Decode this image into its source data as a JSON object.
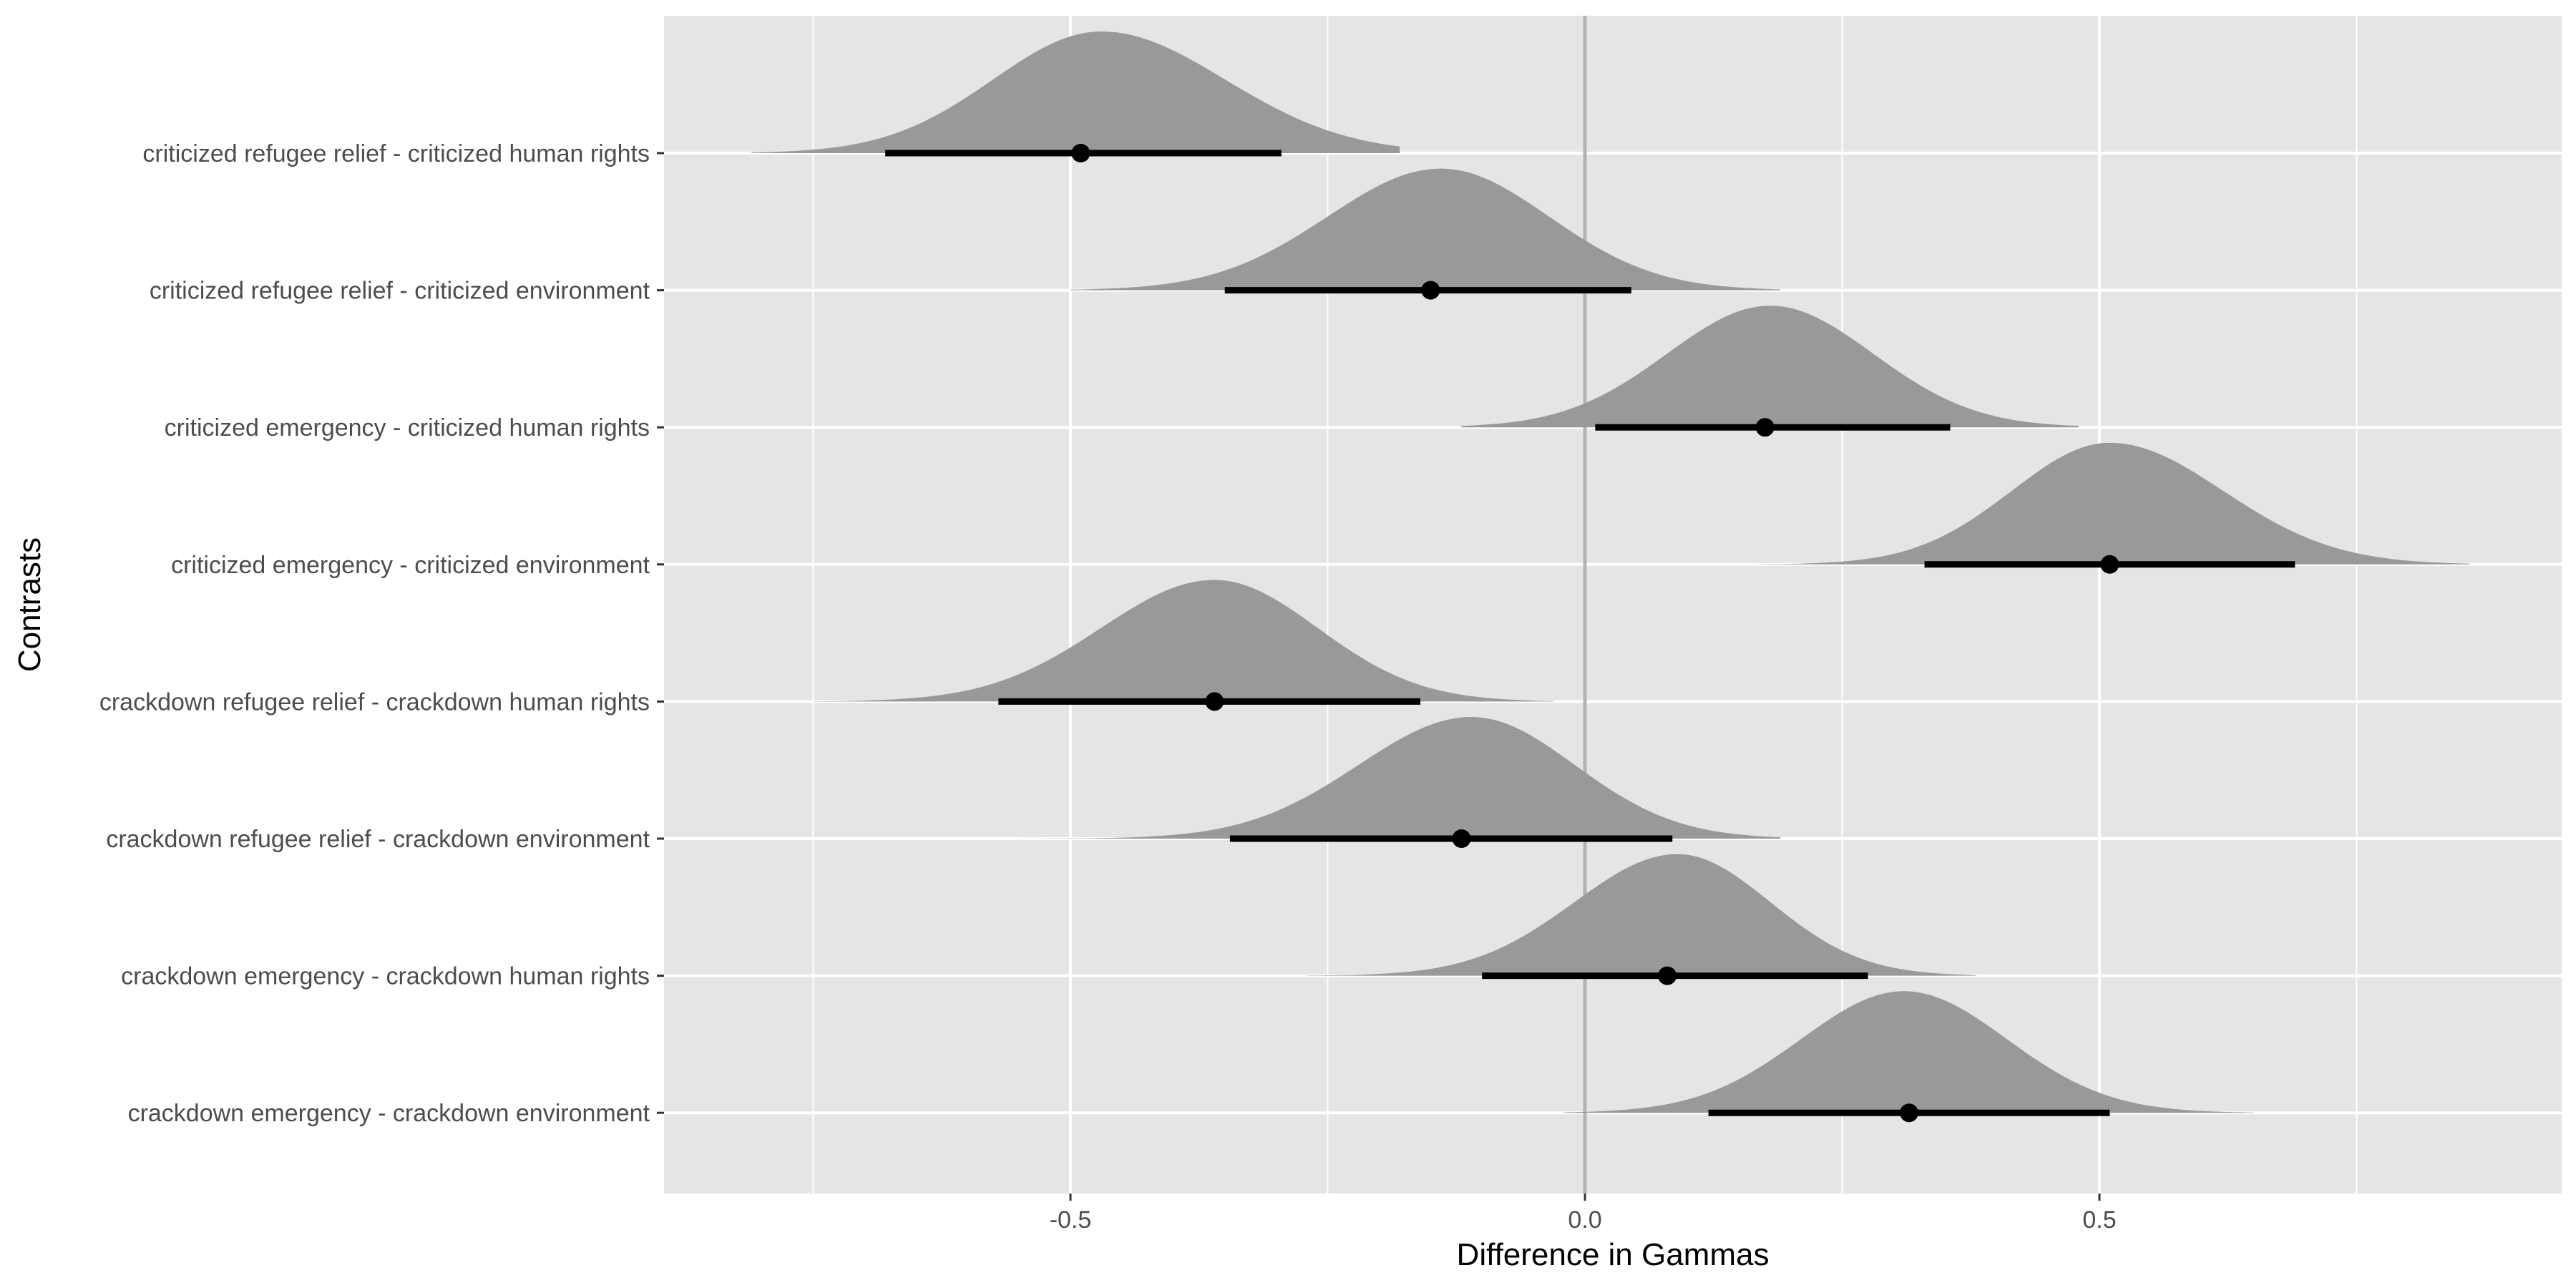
{
  "chart_data": {
    "type": "halfeye",
    "xlabel": "Difference in Gammas",
    "ylabel": "Contrasts",
    "xlim": [
      -0.9,
      0.92
    ],
    "x_ticks": [
      {
        "value": -0.5,
        "label": "-0.5"
      },
      {
        "value": 0.0,
        "label": "0.0"
      },
      {
        "value": 0.5,
        "label": "0.5"
      }
    ],
    "x_minor_ticks": [
      -0.75,
      -0.25,
      0.25,
      0.75
    ],
    "reference_line": 0.0,
    "grid": true,
    "colors": {
      "panel": "#e5e5e5",
      "grid": "#ffffff",
      "density": "#999999",
      "interval": "#000000",
      "reference_line": "#b3b3b3"
    },
    "series": [
      {
        "label": "criticized refugee relief - criticized human rights",
        "point": -0.49,
        "lower": -0.68,
        "upper": -0.295,
        "min": -0.81,
        "max": -0.18,
        "mode": -0.47,
        "sd_left": 0.105,
        "sd_right": 0.12
      },
      {
        "label": "criticized refugee relief - criticized environment",
        "point": -0.15,
        "lower": -0.35,
        "upper": 0.045,
        "min": -0.5,
        "max": 0.19,
        "mode": -0.14,
        "sd_left": 0.11,
        "sd_right": 0.105
      },
      {
        "label": "criticized emergency - criticized human rights",
        "point": 0.175,
        "lower": 0.01,
        "upper": 0.355,
        "min": -0.12,
        "max": 0.48,
        "mode": 0.18,
        "sd_left": 0.1,
        "sd_right": 0.1
      },
      {
        "label": "criticized emergency - criticized environment",
        "point": 0.51,
        "lower": 0.33,
        "upper": 0.69,
        "min": 0.13,
        "max": 0.86,
        "mode": 0.51,
        "sd_left": 0.095,
        "sd_right": 0.11
      },
      {
        "label": "crackdown refugee relief - crackdown human rights",
        "point": -0.36,
        "lower": -0.57,
        "upper": -0.16,
        "min": -0.75,
        "max": -0.03,
        "mode": -0.36,
        "sd_left": 0.11,
        "sd_right": 0.1
      },
      {
        "label": "crackdown refugee relief - crackdown environment",
        "point": -0.12,
        "lower": -0.345,
        "upper": 0.085,
        "min": -0.58,
        "max": 0.19,
        "mode": -0.11,
        "sd_left": 0.11,
        "sd_right": 0.1
      },
      {
        "label": "crackdown emergency - crackdown human rights",
        "point": 0.08,
        "lower": -0.1,
        "upper": 0.275,
        "min": -0.27,
        "max": 0.38,
        "mode": 0.09,
        "sd_left": 0.1,
        "sd_right": 0.09
      },
      {
        "label": "crackdown emergency - crackdown environment",
        "point": 0.315,
        "lower": 0.12,
        "upper": 0.51,
        "min": -0.02,
        "max": 0.65,
        "mode": 0.31,
        "sd_left": 0.1,
        "sd_right": 0.1
      }
    ]
  }
}
